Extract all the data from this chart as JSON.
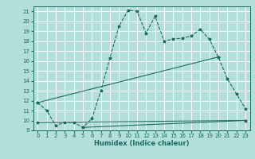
{
  "xlabel": "Humidex (Indice chaleur)",
  "bg_color": "#b2dfdb",
  "grid_color": "#ffffff",
  "line_color": "#1a6b5e",
  "xlim": [
    -0.5,
    23.5
  ],
  "ylim": [
    9,
    21.5
  ],
  "xticks": [
    0,
    1,
    2,
    3,
    4,
    5,
    6,
    7,
    8,
    9,
    10,
    11,
    12,
    13,
    14,
    15,
    16,
    17,
    18,
    19,
    20,
    21,
    22,
    23
  ],
  "yticks": [
    9,
    10,
    11,
    12,
    13,
    14,
    15,
    16,
    17,
    18,
    19,
    20,
    21
  ],
  "series1_x": [
    0,
    1,
    2,
    3,
    4,
    5,
    6,
    7,
    8,
    9,
    10,
    11,
    12,
    13,
    14,
    15,
    16,
    17,
    18,
    19,
    20,
    21,
    22,
    23
  ],
  "series1_y": [
    11.8,
    11.0,
    9.5,
    9.8,
    9.8,
    9.3,
    10.2,
    13.0,
    16.3,
    19.5,
    21.1,
    21.0,
    18.8,
    20.5,
    18.0,
    18.2,
    18.3,
    18.5,
    19.2,
    18.2,
    16.4,
    14.2,
    12.7,
    11.2
  ],
  "series2_x": [
    0,
    20
  ],
  "series2_y": [
    11.8,
    16.4
  ],
  "series3_x": [
    0,
    23
  ],
  "series3_y": [
    9.8,
    10.0
  ],
  "series4_x": [
    5,
    23
  ],
  "series4_y": [
    9.3,
    10.0
  ]
}
